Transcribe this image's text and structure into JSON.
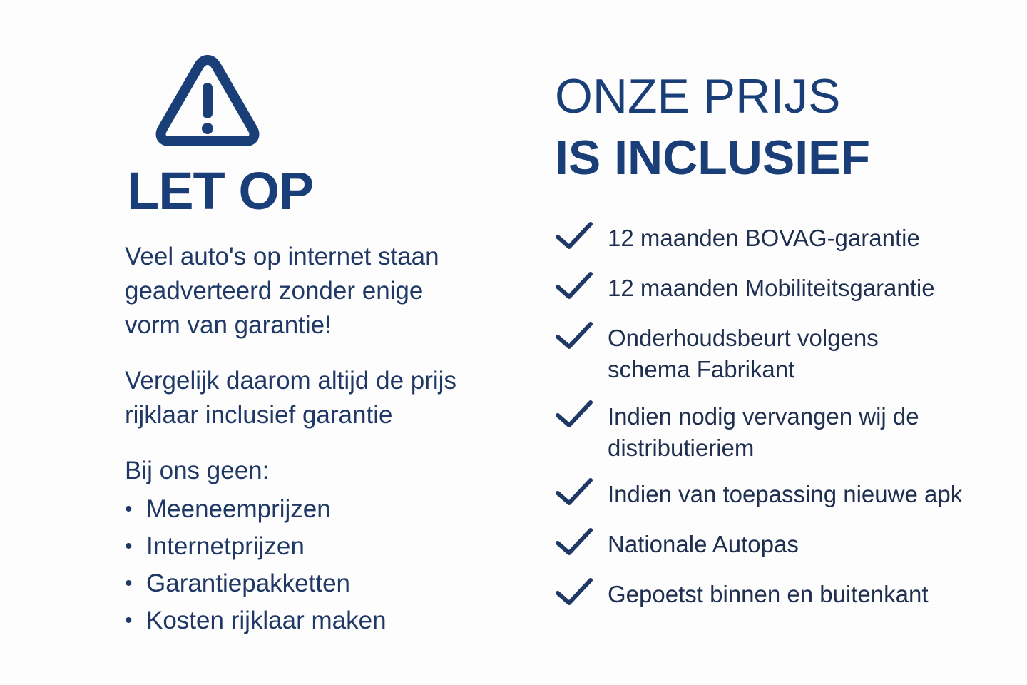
{
  "colors": {
    "primary": "#1a3f78",
    "text": "#1f3865"
  },
  "left": {
    "icon": "warning-triangle-icon",
    "title": "LET OP",
    "paragraph1": "Veel auto's op internet staan geadverteerd zonder enige vorm van garantie!",
    "paragraph2": "Vergelijk daarom altijd de prijs rijklaar inclusief garantie",
    "intro": "Bij ons geen:",
    "bullets": [
      "Meeneemprijzen",
      "Internetprijzen",
      "Garantiepakketten",
      "Kosten rijklaar maken"
    ]
  },
  "right": {
    "title_line1": "ONZE PRIJS",
    "title_line2": "IS INCLUSIEF",
    "icon": "checkmark-icon",
    "items": [
      "12 maanden BOVAG-garantie",
      "12 maanden Mobiliteitsgarantie",
      "Onderhoudsbeurt volgens schema Fabrikant",
      "Indien nodig vervangen wij de distributieriem",
      "Indien van toepassing nieuwe apk",
      "Nationale Autopas",
      "Gepoetst binnen en buitenkant"
    ]
  }
}
